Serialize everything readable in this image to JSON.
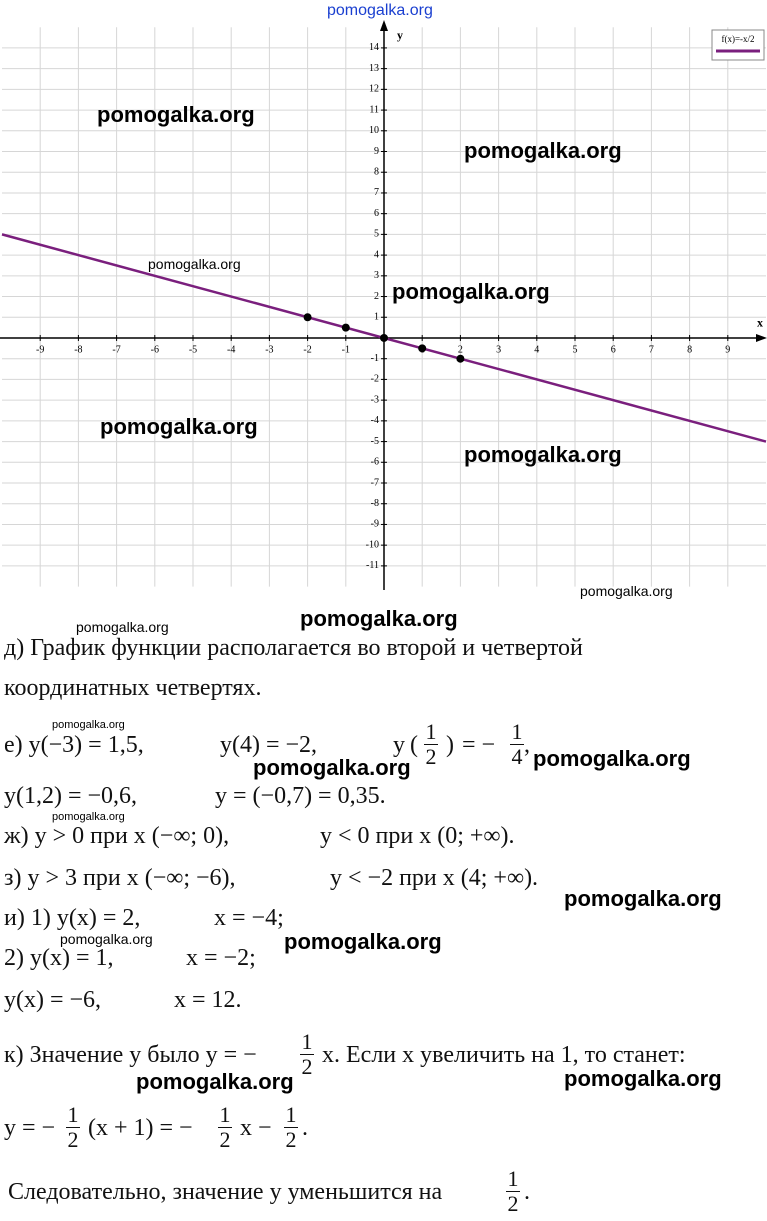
{
  "chart_data": {
    "type": "line",
    "x_label": "x",
    "y_label": "y",
    "series": [
      {
        "name": "f(x)=-x/2",
        "color": "#7a1f7d",
        "x": [
          -10,
          10
        ],
        "values": [
          5,
          -5
        ]
      }
    ],
    "points": {
      "color": "#000000",
      "x": [
        -2,
        -1,
        0,
        1,
        2
      ],
      "values": [
        1,
        0.5,
        0,
        -0.5,
        -1
      ]
    },
    "xlim": [
      -10,
      10
    ],
    "ylim": [
      -12,
      15
    ],
    "xticks": [
      -9,
      -8,
      -7,
      -6,
      -5,
      -4,
      -3,
      -2,
      -1,
      1,
      2,
      3,
      4,
      5,
      6,
      7,
      8,
      9
    ],
    "yticks": [
      14,
      13,
      12,
      11,
      10,
      9,
      8,
      7,
      6,
      5,
      4,
      3,
      2,
      1,
      -1,
      -2,
      -3,
      -4,
      -5,
      -6,
      -7,
      -8,
      -9,
      -10,
      -11
    ],
    "grid": true,
    "legend": "upper right"
  },
  "watermarks": [
    "pomogalka.org",
    "pomogalka.org",
    "pomogalka.org",
    "pomogalka.org",
    "pomogalka.org",
    "pomogalka.org",
    "pomogalka.org",
    "pomogalka.org",
    "pomogalka.org",
    "pomogalka.org",
    "pomogalka.org",
    "pomogalka.org",
    "pomogalka.org",
    "pomogalka.org",
    "pomogalka.org",
    "pomogalka.org",
    "pomogalka.org",
    "pomogalka.org",
    "pomogalka.org"
  ],
  "document": {
    "lines": [
      {
        "parts": [
          "д) График функции располагается во второй и четвертой"
        ]
      },
      {
        "parts": [
          "координатных четвертях."
        ]
      },
      {
        "parts": [
          "е) y(−3) = 1,5,",
          "y(4) = −2,",
          "y",
          "(",
          {
            "num": "1",
            "den": "2"
          },
          ")",
          "= −",
          {
            "num": "1",
            "den": "4"
          },
          ","
        ]
      },
      {
        "parts": [
          "y(1,2) = −0,6,",
          "y = (−0,7) = 0,35."
        ]
      },
      {
        "parts": [
          "ж) y > 0 при x (−∞; 0),",
          "y < 0 при x (0; +∞)."
        ]
      },
      {
        "parts": [
          "з) y > 3 при x (−∞; −6),",
          "y < −2 при x (4; +∞)."
        ]
      },
      {
        "parts": [
          "и) 1) y(x) = 2,",
          "x = −4;"
        ]
      },
      {
        "parts": [
          "2) y(x) = 1,",
          "x = −2;"
        ]
      },
      {
        "parts": [
          "y(x) = −6,",
          "x = 12."
        ]
      },
      {
        "parts": [
          "к) Значение y было y = −",
          {
            "num": "1",
            "den": "2"
          },
          "x. Если x увеличить на 1, то станет:"
        ]
      },
      {
        "parts": [
          "y = −",
          {
            "num": "1",
            "den": "2"
          },
          "(x + 1) = −",
          {
            "num": "1",
            "den": "2"
          },
          "x −",
          {
            "num": "1",
            "den": "2"
          },
          "."
        ]
      },
      {
        "parts": [
          "Следовательно, значение y уменьшится на",
          {
            "num": "1",
            "den": "2"
          },
          "."
        ]
      }
    ]
  }
}
